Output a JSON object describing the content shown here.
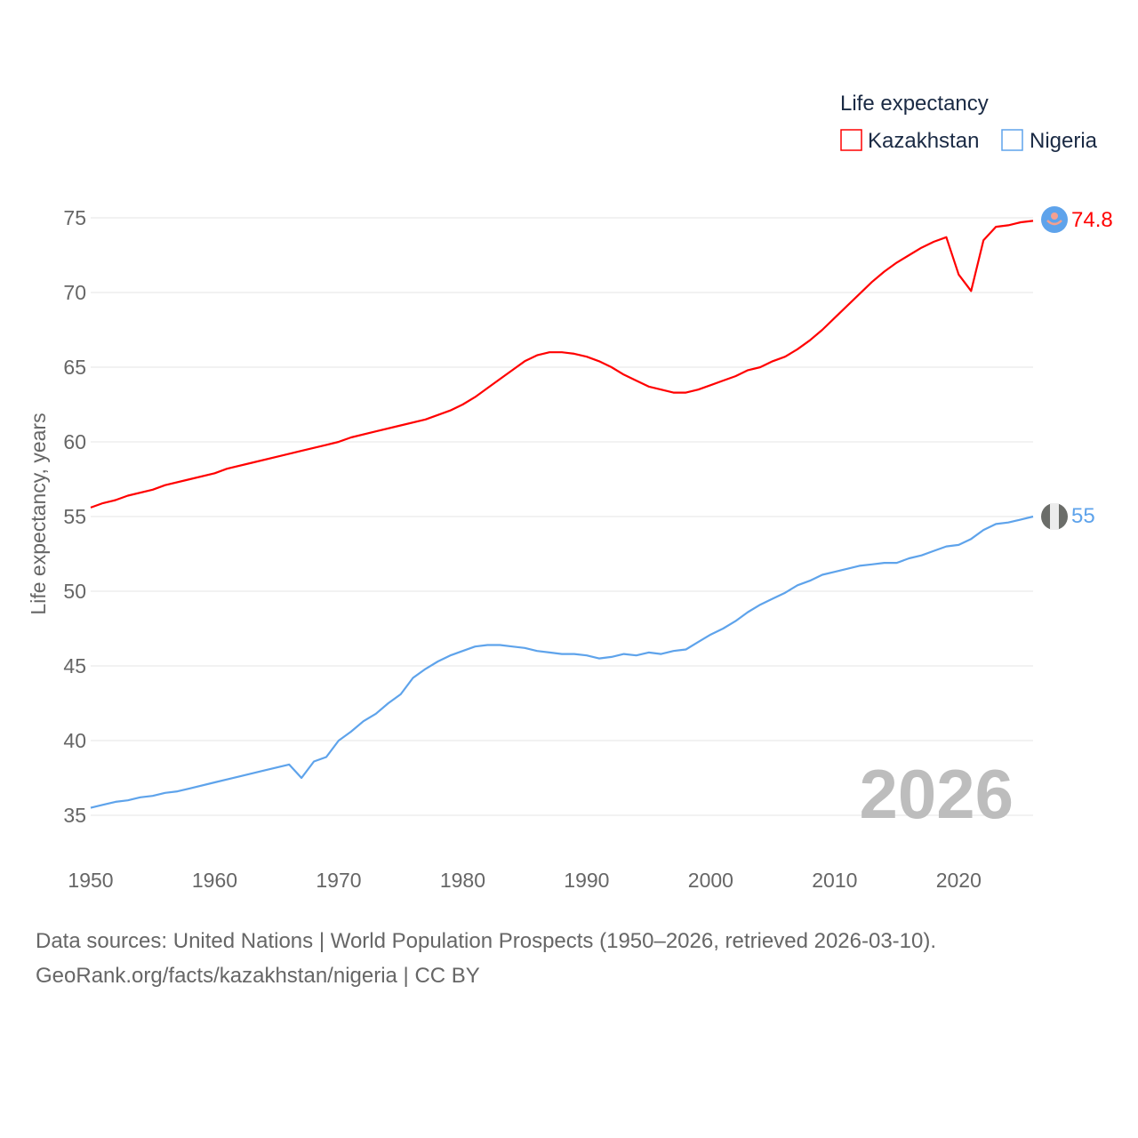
{
  "chart_data": {
    "type": "line",
    "title": "",
    "legend_title": "Life expectancy",
    "legend_position": "top-right",
    "ylabel": "Life expectancy, years",
    "xlabel": "",
    "ylim": [
      35,
      75
    ],
    "xlim": [
      1950,
      2026
    ],
    "y_ticks": [
      "35",
      "40",
      "45",
      "50",
      "55",
      "60",
      "65",
      "70",
      "75"
    ],
    "x_ticks": [
      "1950",
      "1960",
      "1970",
      "1980",
      "1990",
      "2000",
      "2010",
      "2020"
    ],
    "grid": true,
    "current_year": "2026",
    "series": [
      {
        "name": "Kazakhstan",
        "color": "#ff0000",
        "end_label": "74.8",
        "points": [
          [
            1950,
            55.6
          ],
          [
            1951,
            55.9
          ],
          [
            1952,
            56.1
          ],
          [
            1953,
            56.4
          ],
          [
            1955,
            56.8
          ],
          [
            1956,
            57.1
          ],
          [
            1958,
            57.5
          ],
          [
            1960,
            57.9
          ],
          [
            1961,
            58.2
          ],
          [
            1963,
            58.6
          ],
          [
            1965,
            59.0
          ],
          [
            1967,
            59.4
          ],
          [
            1969,
            59.8
          ],
          [
            1970,
            60.0
          ],
          [
            1971,
            60.3
          ],
          [
            1973,
            60.7
          ],
          [
            1975,
            61.1
          ],
          [
            1977,
            61.5
          ],
          [
            1979,
            62.1
          ],
          [
            1980,
            62.5
          ],
          [
            1981,
            63.0
          ],
          [
            1982,
            63.6
          ],
          [
            1983,
            64.2
          ],
          [
            1984,
            64.8
          ],
          [
            1985,
            65.4
          ],
          [
            1986,
            65.8
          ],
          [
            1987,
            66.0
          ],
          [
            1988,
            66.0
          ],
          [
            1989,
            65.9
          ],
          [
            1990,
            65.7
          ],
          [
            1991,
            65.4
          ],
          [
            1992,
            65.0
          ],
          [
            1993,
            64.5
          ],
          [
            1994,
            64.1
          ],
          [
            1995,
            63.7
          ],
          [
            1996,
            63.5
          ],
          [
            1997,
            63.3
          ],
          [
            1998,
            63.3
          ],
          [
            1999,
            63.5
          ],
          [
            2000,
            63.8
          ],
          [
            2001,
            64.1
          ],
          [
            2002,
            64.4
          ],
          [
            2003,
            64.8
          ],
          [
            2004,
            65.0
          ],
          [
            2005,
            65.4
          ],
          [
            2006,
            65.7
          ],
          [
            2007,
            66.2
          ],
          [
            2008,
            66.8
          ],
          [
            2009,
            67.5
          ],
          [
            2010,
            68.3
          ],
          [
            2011,
            69.1
          ],
          [
            2012,
            69.9
          ],
          [
            2013,
            70.7
          ],
          [
            2014,
            71.4
          ],
          [
            2015,
            72.0
          ],
          [
            2016,
            72.5
          ],
          [
            2017,
            73.0
          ],
          [
            2018,
            73.4
          ],
          [
            2019,
            73.7
          ],
          [
            2020,
            71.2
          ],
          [
            2021,
            70.1
          ],
          [
            2022,
            73.5
          ],
          [
            2023,
            74.4
          ],
          [
            2024,
            74.5
          ],
          [
            2025,
            74.7
          ],
          [
            2026,
            74.8
          ]
        ]
      },
      {
        "name": "Nigeria",
        "color": "#5ea3eb",
        "end_label": "55",
        "points": [
          [
            1950,
            35.5
          ],
          [
            1951,
            35.7
          ],
          [
            1952,
            35.9
          ],
          [
            1953,
            36.0
          ],
          [
            1954,
            36.2
          ],
          [
            1955,
            36.3
          ],
          [
            1956,
            36.5
          ],
          [
            1957,
            36.6
          ],
          [
            1958,
            36.8
          ],
          [
            1960,
            37.2
          ],
          [
            1962,
            37.6
          ],
          [
            1964,
            38.0
          ],
          [
            1966,
            38.4
          ],
          [
            1967,
            37.5
          ],
          [
            1968,
            38.6
          ],
          [
            1969,
            38.9
          ],
          [
            1970,
            40.0
          ],
          [
            1971,
            40.6
          ],
          [
            1972,
            41.3
          ],
          [
            1973,
            41.8
          ],
          [
            1974,
            42.5
          ],
          [
            1975,
            43.1
          ],
          [
            1976,
            44.2
          ],
          [
            1977,
            44.8
          ],
          [
            1978,
            45.3
          ],
          [
            1979,
            45.7
          ],
          [
            1980,
            46.0
          ],
          [
            1981,
            46.3
          ],
          [
            1982,
            46.4
          ],
          [
            1983,
            46.4
          ],
          [
            1984,
            46.3
          ],
          [
            1985,
            46.2
          ],
          [
            1986,
            46.0
          ],
          [
            1987,
            45.9
          ],
          [
            1988,
            45.8
          ],
          [
            1989,
            45.8
          ],
          [
            1990,
            45.7
          ],
          [
            1991,
            45.5
          ],
          [
            1992,
            45.6
          ],
          [
            1993,
            45.8
          ],
          [
            1994,
            45.7
          ],
          [
            1995,
            45.9
          ],
          [
            1996,
            45.8
          ],
          [
            1997,
            46.0
          ],
          [
            1998,
            46.1
          ],
          [
            1999,
            46.6
          ],
          [
            2000,
            47.1
          ],
          [
            2001,
            47.5
          ],
          [
            2002,
            48.0
          ],
          [
            2003,
            48.6
          ],
          [
            2004,
            49.1
          ],
          [
            2005,
            49.5
          ],
          [
            2006,
            49.9
          ],
          [
            2007,
            50.4
          ],
          [
            2008,
            50.7
          ],
          [
            2009,
            51.1
          ],
          [
            2010,
            51.3
          ],
          [
            2011,
            51.5
          ],
          [
            2012,
            51.7
          ],
          [
            2013,
            51.8
          ],
          [
            2014,
            51.9
          ],
          [
            2015,
            51.9
          ],
          [
            2016,
            52.2
          ],
          [
            2017,
            52.4
          ],
          [
            2018,
            52.7
          ],
          [
            2019,
            53.0
          ],
          [
            2020,
            53.1
          ],
          [
            2021,
            53.5
          ],
          [
            2022,
            54.1
          ],
          [
            2023,
            54.5
          ],
          [
            2024,
            54.6
          ],
          [
            2025,
            54.8
          ],
          [
            2026,
            55.0
          ]
        ]
      }
    ]
  },
  "footer": {
    "line1": "Data sources: United Nations | World Population Prospects (1950–2026, retrieved 2026-03-10).",
    "line2": "GeoRank.org/facts/kazakhstan/nigeria | CC BY"
  }
}
